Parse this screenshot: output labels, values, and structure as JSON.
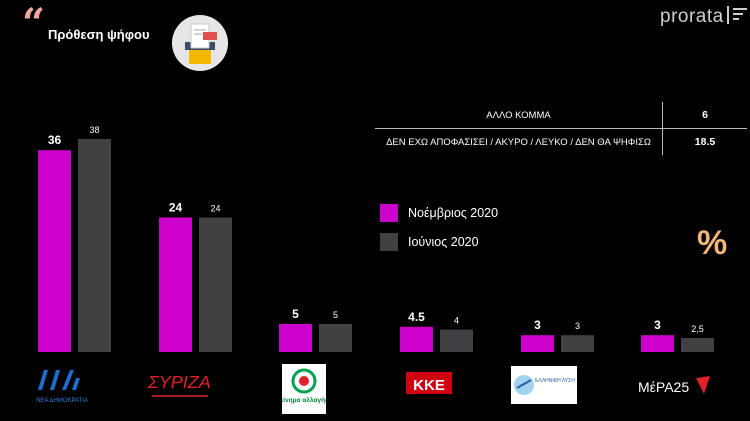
{
  "header": {
    "quote_mark": "“",
    "title": "Πρόθεση ψήφου",
    "brand": "prorata"
  },
  "other_table": {
    "rows": [
      {
        "label": "ΑΛΛΟ ΚΟΜΜΑ",
        "value": "6"
      },
      {
        "label": "ΔΕΝ ΕΧΩ ΑΠΟΦΑΣΙΣΕΙ / ΑΚΥΡΟ / ΛΕΥΚΟ / ΔΕΝ ΘΑ ΨΗΦΙΣΩ",
        "value": "18.5"
      }
    ]
  },
  "unit_symbol": "%",
  "colors": {
    "series1": "#cc00cc",
    "series2": "#414042",
    "accent": "#f2b77a"
  },
  "chart_data": {
    "type": "bar",
    "categories": [
      "ΝΕΑ ΔΗΜΟΚΡΑΤΙΑ",
      "ΣΥΡΙΖΑ",
      "κίνημα αλλαγής",
      "ΚΚΕ",
      "ΕΛΛΗΝΙΚΗ ΛΥΣΗ",
      "ΜέΡΑ25"
    ],
    "series": [
      {
        "name": "Νοέμβριος 2020",
        "values": [
          36,
          24,
          5,
          4.5,
          3,
          3
        ],
        "labels": [
          "36",
          "24",
          "5",
          "4.5",
          "3",
          "3"
        ],
        "color": "#cc00cc"
      },
      {
        "name": "Ιούνιος 2020",
        "values": [
          38,
          24,
          5,
          4,
          3,
          2.5
        ],
        "labels": [
          "38",
          "24",
          "5",
          "4",
          "3",
          "2,5"
        ],
        "color": "#414042"
      }
    ],
    "title": "Πρόθεση ψήφου",
    "xlabel": "",
    "ylabel": "",
    "ylim": [
      0,
      38
    ],
    "legend": "right",
    "grid": false
  }
}
